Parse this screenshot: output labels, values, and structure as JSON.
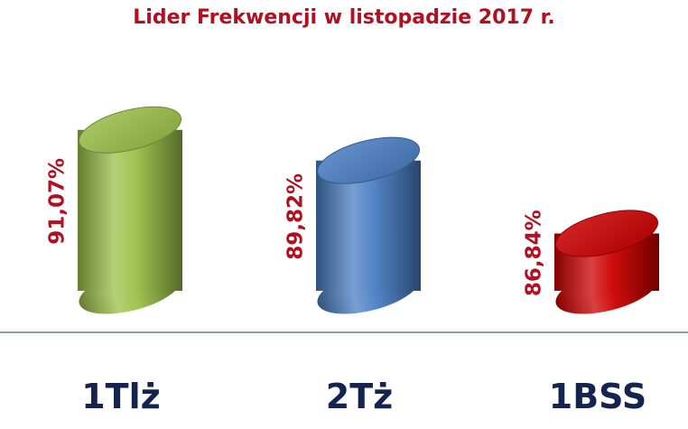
{
  "chart_data": {
    "type": "bar",
    "title": "Lider Frekwencji w listopadzie 2017 r.",
    "categories": [
      "1Tlż",
      "2Tż",
      "1BSS"
    ],
    "values": [
      91.07,
      89.82,
      86.84
    ],
    "value_labels": [
      "91,07%",
      "89,82%",
      "86,84%"
    ],
    "colors": [
      "#9cc04a",
      "#4a7fc4",
      "#cc0000"
    ],
    "value_label_color": "#b01020",
    "category_label_color": "#14244e",
    "ylim": [
      84.5,
      92.5
    ],
    "grid": false,
    "legend": "none",
    "style": "3d-cylinder"
  }
}
